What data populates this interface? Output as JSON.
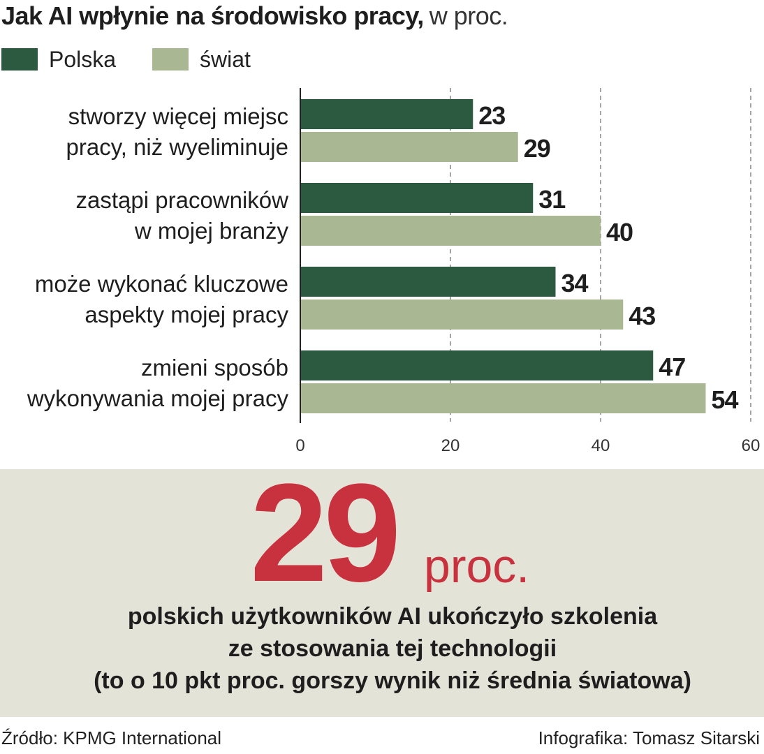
{
  "title": {
    "bold": "Jak AI wpłynie na środowisko pracy,",
    "light": "w proc."
  },
  "legend": [
    {
      "label": "Polska",
      "color": "#2c5a40"
    },
    {
      "label": "świat",
      "color": "#a9b893"
    }
  ],
  "chart_data": {
    "type": "bar",
    "orientation": "horizontal",
    "title": "Jak AI wpłynie na środowisko pracy, w proc.",
    "categories": [
      [
        "stworzy więcej miejsc",
        "pracy, niż wyeliminuje"
      ],
      [
        "zastąpi pracowników",
        "w mojej branży"
      ],
      [
        "może wykonać kluczowe",
        "aspekty mojej pracy"
      ],
      [
        "zmieni sposób",
        "wykonywania mojej pracy"
      ]
    ],
    "series": [
      {
        "name": "Polska",
        "color": "#2c5a40",
        "values": [
          23,
          31,
          34,
          47
        ]
      },
      {
        "name": "świat",
        "color": "#a9b893",
        "values": [
          29,
          40,
          43,
          54
        ]
      }
    ],
    "xlim": [
      0,
      60
    ],
    "xticks": [
      0,
      20,
      40,
      60
    ],
    "grid": true,
    "legend_position": "top-left"
  },
  "callout": {
    "number": "29",
    "unit": "proc.",
    "lines": [
      "polskich użytkowników AI ukończyło szkolenia",
      "ze stosowania tej technologii",
      "(to o 10 pkt proc. gorszy wynik niż średnia światowa)"
    ],
    "color": "#c8323f"
  },
  "footer": {
    "source": "Źródło: KPMG International",
    "credit": "Infografika: Tomasz Sitarski"
  }
}
